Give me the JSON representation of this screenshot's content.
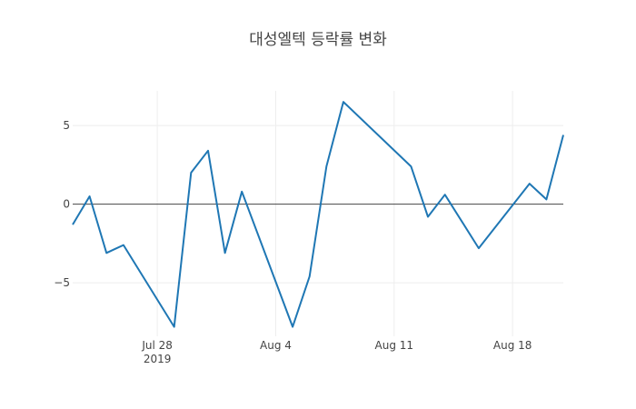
{
  "chart_data": {
    "type": "line",
    "title": "대성엘텍 등락률 변화",
    "xlabel": "",
    "ylabel": "",
    "x_ticks": [
      {
        "date": "2019-07-28",
        "label": "Jul 28",
        "sublabel": "2019"
      },
      {
        "date": "2019-08-04",
        "label": "Aug 4",
        "sublabel": ""
      },
      {
        "date": "2019-08-11",
        "label": "Aug 11",
        "sublabel": ""
      },
      {
        "date": "2019-08-18",
        "label": "Aug 18",
        "sublabel": ""
      }
    ],
    "y_ticks": [
      {
        "value": 5,
        "label": "5"
      },
      {
        "value": 0,
        "label": "0"
      },
      {
        "value": -5,
        "label": "−5"
      }
    ],
    "xlim": [
      "2019-07-23",
      "2019-08-21"
    ],
    "ylim": [
      -8.4,
      7.2
    ],
    "grid": true,
    "zero_line": true,
    "line_color": "#1f77b4",
    "series": [
      {
        "x": [
          "2019-07-23",
          "2019-07-24",
          "2019-07-25",
          "2019-07-26",
          "2019-07-29",
          "2019-07-30",
          "2019-07-31",
          "2019-08-01",
          "2019-08-02",
          "2019-08-05",
          "2019-08-06",
          "2019-08-07",
          "2019-08-08",
          "2019-08-12",
          "2019-08-13",
          "2019-08-14",
          "2019-08-16",
          "2019-08-19",
          "2019-08-20",
          "2019-08-21"
        ],
        "y": [
          -1.3,
          0.5,
          -3.1,
          -2.6,
          -7.8,
          2.0,
          3.4,
          -3.1,
          0.8,
          -7.8,
          -4.6,
          2.4,
          6.5,
          2.4,
          -0.8,
          0.6,
          -2.8,
          1.3,
          0.3,
          4.4
        ]
      }
    ]
  }
}
